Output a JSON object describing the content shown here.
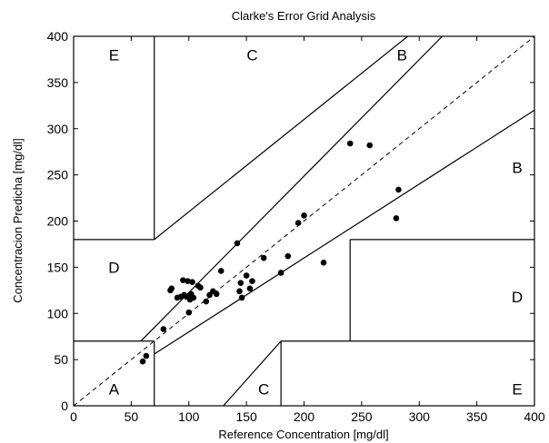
{
  "chart_data": {
    "type": "scatter",
    "title": "Clarke's Error Grid Analysis",
    "xlabel": "Reference Concentration [mg/dl]",
    "ylabel": "Concentracion Predicha [mg/dl]",
    "xlim": [
      0,
      400
    ],
    "ylim": [
      0,
      400
    ],
    "xticks": [
      0,
      50,
      100,
      150,
      200,
      250,
      300,
      350,
      400
    ],
    "yticks": [
      0,
      50,
      100,
      150,
      200,
      250,
      300,
      350,
      400
    ],
    "grid": false,
    "zone_labels": [
      {
        "text": "E",
        "x": 35,
        "y": 380
      },
      {
        "text": "C",
        "x": 155,
        "y": 380
      },
      {
        "text": "B",
        "x": 285,
        "y": 380
      },
      {
        "text": "B",
        "x": 385,
        "y": 258
      },
      {
        "text": "D",
        "x": 35,
        "y": 150
      },
      {
        "text": "D",
        "x": 385,
        "y": 118
      },
      {
        "text": "A",
        "x": 35,
        "y": 18
      },
      {
        "text": "C",
        "x": 165,
        "y": 18
      },
      {
        "text": "E",
        "x": 385,
        "y": 18
      }
    ],
    "zone_lines": [
      {
        "points": [
          [
            70,
            180
          ],
          [
            70,
            400
          ]
        ]
      },
      {
        "points": [
          [
            0,
            180
          ],
          [
            70,
            180
          ]
        ]
      },
      {
        "points": [
          [
            70,
            180
          ],
          [
            290,
            400
          ]
        ]
      },
      {
        "points": [
          [
            70,
            0
          ],
          [
            70,
            70
          ]
        ]
      },
      {
        "points": [
          [
            0,
            70
          ],
          [
            70,
            70
          ]
        ]
      },
      {
        "points": [
          [
            58.3,
            70
          ],
          [
            320,
            400
          ]
        ]
      },
      {
        "points": [
          [
            70,
            56
          ],
          [
            400,
            320
          ]
        ]
      },
      {
        "points": [
          [
            130,
            0
          ],
          [
            180,
            70
          ]
        ]
      },
      {
        "points": [
          [
            180,
            0
          ],
          [
            180,
            70
          ]
        ]
      },
      {
        "points": [
          [
            180,
            70
          ],
          [
            400,
            70
          ]
        ]
      },
      {
        "points": [
          [
            240,
            70
          ],
          [
            240,
            180
          ]
        ]
      },
      {
        "points": [
          [
            240,
            180
          ],
          [
            400,
            180
          ]
        ]
      }
    ],
    "reference_line": {
      "points": [
        [
          0,
          0
        ],
        [
          400,
          400
        ]
      ],
      "style": "dashed"
    },
    "points": [
      [
        60,
        48
      ],
      [
        63,
        54
      ],
      [
        78,
        83
      ],
      [
        84,
        125
      ],
      [
        85,
        127
      ],
      [
        90,
        117
      ],
      [
        93,
        118
      ],
      [
        95,
        136
      ],
      [
        96,
        120
      ],
      [
        98,
        118
      ],
      [
        99,
        135
      ],
      [
        100,
        101
      ],
      [
        101,
        115
      ],
      [
        102,
        121
      ],
      [
        103,
        134
      ],
      [
        104,
        117
      ],
      [
        108,
        130
      ],
      [
        110,
        128
      ],
      [
        115,
        113
      ],
      [
        118,
        120
      ],
      [
        121,
        124
      ],
      [
        124,
        121
      ],
      [
        128,
        146
      ],
      [
        142,
        176
      ],
      [
        144,
        124
      ],
      [
        145,
        133
      ],
      [
        146,
        117
      ],
      [
        150,
        141
      ],
      [
        153,
        127
      ],
      [
        155,
        135
      ],
      [
        165,
        160
      ],
      [
        180,
        144
      ],
      [
        186,
        162
      ],
      [
        195,
        198
      ],
      [
        200,
        206
      ],
      [
        217,
        155
      ],
      [
        240,
        284
      ],
      [
        257,
        282
      ],
      [
        280,
        203
      ],
      [
        282,
        234
      ]
    ]
  }
}
